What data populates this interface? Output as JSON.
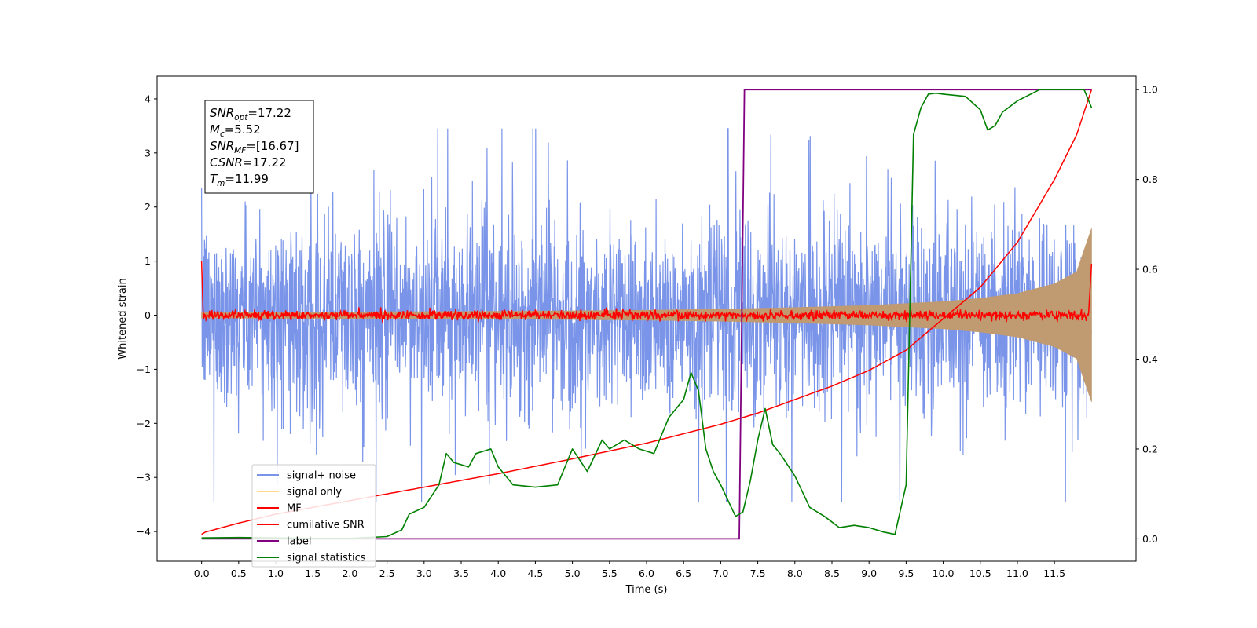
{
  "chart_data": {
    "type": "line",
    "xlabel": "Time (s)",
    "ylabel": "Whitened strain",
    "xlim": [
      -0.6,
      12.6
    ],
    "ylim": [
      -4.55,
      4.42
    ],
    "y2lim": [
      -0.05,
      1.03
    ],
    "x_ticks": [
      "0.0",
      "0.5",
      "1.0",
      "1.5",
      "2.0",
      "2.5",
      "3.0",
      "3.5",
      "4.0",
      "4.5",
      "5.0",
      "5.5",
      "6.0",
      "6.5",
      "7.0",
      "7.5",
      "8.0",
      "8.5",
      "9.0",
      "9.5",
      "10.0",
      "10.5",
      "11.0",
      "11.5"
    ],
    "y_ticks": [
      "−4",
      "−3",
      "−2",
      "−1",
      "0",
      "1",
      "2",
      "3",
      "4"
    ],
    "y2_ticks": [
      "0.0",
      "0.2",
      "0.4",
      "0.6",
      "0.8",
      "1.0"
    ],
    "info_box": [
      {
        "sym": "SNR",
        "sub": "opt",
        "val": "=17.22"
      },
      {
        "sym": "M",
        "sub": "c",
        "val": "=5.52"
      },
      {
        "sym": "SNR",
        "sub": "MF",
        "val": "=[16.67]"
      },
      {
        "sym": "CSNR",
        "sub": "",
        "val": "=17.22"
      },
      {
        "sym": "T",
        "sub": "m",
        "val": "=11.99"
      }
    ],
    "legend": [
      {
        "label": "signal+ noise",
        "color": "#7994e8"
      },
      {
        "label": "signal only",
        "color": "#ffd88c"
      },
      {
        "label": "MF",
        "color": "#ff0000"
      },
      {
        "label": "cumilative SNR",
        "color": "#ff0000"
      },
      {
        "label": "label",
        "color": "#800080"
      },
      {
        "label": "signal statistics",
        "color": "#008000"
      }
    ],
    "series": [
      {
        "name": "signal+ noise",
        "axis": "left",
        "description": "noise band, amplitude about ±2 with spikes to ±3.4",
        "color": "#7994e8",
        "x_range": [
          0.0,
          12.0
        ]
      },
      {
        "name": "signal only",
        "axis": "left",
        "description": "chirp envelope growing toward merger",
        "color": "#c09a70",
        "x": [
          0.0,
          2.0,
          4.0,
          6.0,
          7.0,
          8.0,
          9.0,
          10.0,
          10.5,
          11.0,
          11.5,
          11.8,
          12.0
        ],
        "amplitude": [
          0.05,
          0.06,
          0.07,
          0.09,
          0.11,
          0.14,
          0.18,
          0.25,
          0.31,
          0.4,
          0.58,
          0.8,
          1.6
        ]
      },
      {
        "name": "MF",
        "axis": "left",
        "description": "matched filter output near 0, spikes at start and end",
        "color": "#ff0000"
      },
      {
        "name": "cumilative SNR",
        "axis": "right",
        "color": "#ff0000",
        "x": [
          0.0,
          0.05,
          0.5,
          1.0,
          2.0,
          3.0,
          4.0,
          5.0,
          6.0,
          7.0,
          7.5,
          8.0,
          8.5,
          9.0,
          9.5,
          10.0,
          10.5,
          11.0,
          11.5,
          11.8,
          12.0
        ],
        "y": [
          0.01,
          0.015,
          0.035,
          0.055,
          0.085,
          0.115,
          0.145,
          0.178,
          0.213,
          0.255,
          0.28,
          0.31,
          0.34,
          0.375,
          0.42,
          0.49,
          0.56,
          0.66,
          0.8,
          0.9,
          1.0
        ]
      },
      {
        "name": "label",
        "axis": "right",
        "color": "#800080",
        "x": [
          0.0,
          7.25,
          7.32,
          12.0
        ],
        "y": [
          0.0,
          0.0,
          1.0,
          1.0
        ]
      },
      {
        "name": "signal statistics",
        "axis": "right",
        "color": "#008000",
        "x": [
          0.0,
          0.5,
          1.0,
          1.5,
          2.0,
          2.5,
          2.7,
          2.8,
          3.0,
          3.2,
          3.3,
          3.4,
          3.6,
          3.7,
          3.9,
          4.0,
          4.2,
          4.5,
          4.8,
          5.0,
          5.2,
          5.4,
          5.5,
          5.7,
          5.9,
          6.1,
          6.3,
          6.5,
          6.6,
          6.7,
          6.8,
          6.9,
          7.0,
          7.2,
          7.3,
          7.4,
          7.5,
          7.6,
          7.7,
          7.8,
          8.0,
          8.2,
          8.4,
          8.6,
          8.8,
          9.0,
          9.2,
          9.35,
          9.5,
          9.6,
          9.7,
          9.8,
          9.9,
          10.0,
          10.3,
          10.5,
          10.6,
          10.7,
          10.8,
          11.0,
          11.3,
          11.6,
          11.9,
          12.0
        ],
        "y": [
          0.002,
          0.003,
          0.002,
          0.001,
          0.001,
          0.005,
          0.02,
          0.055,
          0.07,
          0.12,
          0.19,
          0.17,
          0.16,
          0.19,
          0.2,
          0.16,
          0.12,
          0.115,
          0.12,
          0.2,
          0.15,
          0.22,
          0.2,
          0.22,
          0.2,
          0.19,
          0.27,
          0.31,
          0.37,
          0.33,
          0.2,
          0.15,
          0.12,
          0.05,
          0.06,
          0.13,
          0.22,
          0.29,
          0.21,
          0.19,
          0.14,
          0.07,
          0.05,
          0.025,
          0.03,
          0.025,
          0.015,
          0.01,
          0.12,
          0.9,
          0.96,
          0.99,
          0.992,
          0.99,
          0.985,
          0.955,
          0.91,
          0.92,
          0.95,
          0.975,
          1.0,
          1.0,
          1.0,
          0.96
        ]
      }
    ]
  }
}
